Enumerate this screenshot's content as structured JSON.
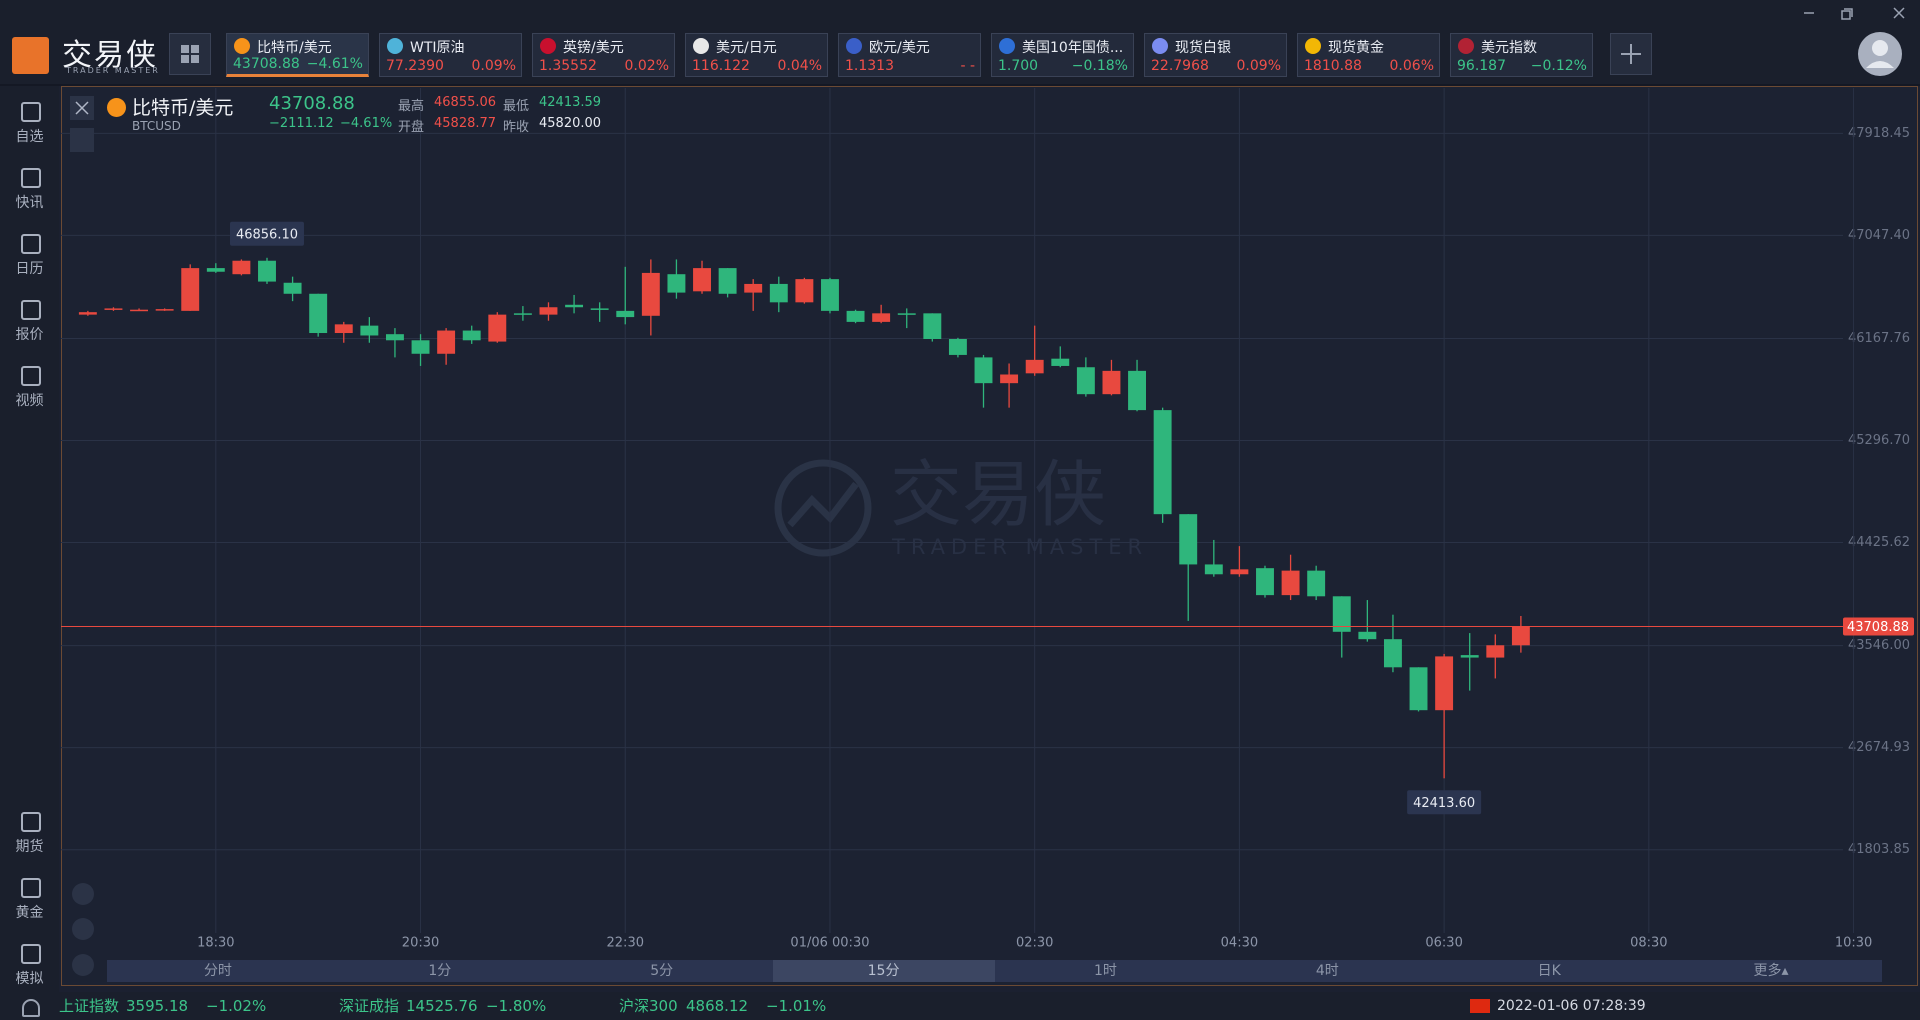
{
  "logo": {
    "title": "交易侠",
    "subtitle": "TRADER MASTER"
  },
  "tickers": [
    {
      "name": "比特币/美元",
      "price": "43708.88",
      "change": "−4.61%",
      "color": "#3cc48a",
      "icon_color": "#f7931a"
    },
    {
      "name": "WTI原油",
      "price": "77.2390",
      "change": "0.09%",
      "color": "#f0504a",
      "icon_color": "#4fb3d9"
    },
    {
      "name": "英镑/美元",
      "price": "1.35552",
      "change": "0.02%",
      "color": "#f0504a",
      "icon_color": "#c8102e"
    },
    {
      "name": "美元/日元",
      "price": "116.122",
      "change": "0.04%",
      "color": "#f0504a",
      "icon_color": "#e8e8e8"
    },
    {
      "name": "欧元/美元",
      "price": "1.1313",
      "change": "- -",
      "color": "#f0504a",
      "icon_color": "#3a5fc8"
    },
    {
      "name": "美国10年国债...",
      "price": "1.700",
      "change": "−0.18%",
      "color": "#3cc48a",
      "icon_color": "#2e6fd6"
    },
    {
      "name": "现货白银",
      "price": "22.7968",
      "change": "0.09%",
      "color": "#f0504a",
      "icon_color": "#7b8cf0"
    },
    {
      "name": "现货黄金",
      "price": "1810.88",
      "change": "0.06%",
      "color": "#f0504a",
      "icon_color": "#f2b705"
    },
    {
      "name": "美元指数",
      "price": "96.187",
      "change": "−0.12%",
      "color": "#3cc48a",
      "icon_color": "#b22234"
    }
  ],
  "sidebar": {
    "top": [
      "自选",
      "快讯",
      "日历",
      "报价",
      "视频"
    ],
    "bottom": [
      "期货",
      "黄金",
      "模拟"
    ]
  },
  "chart_header": {
    "name": "比特币/美元",
    "code": "BTCUSD",
    "price": "43708.88",
    "change": "−2111.12",
    "change_pct": "−4.61%",
    "stats": [
      {
        "label": "最高",
        "value": "46855.06",
        "color": "#f0504a"
      },
      {
        "label": "开盘",
        "value": "45828.77",
        "color": "#f0504a"
      },
      {
        "label": "最低",
        "value": "42413.59",
        "color": "#3cc48a"
      },
      {
        "label": "昨收",
        "value": "45820.00",
        "color": "#e8ebf2"
      }
    ]
  },
  "watermark": {
    "title": "交易侠",
    "subtitle": "TRADER MASTER"
  },
  "chart_data": {
    "type": "candlestick",
    "x": [
      0,
      1,
      2,
      3,
      4,
      5,
      6,
      7,
      8,
      9,
      10,
      11,
      12,
      13,
      14,
      15,
      16,
      17,
      18,
      19,
      20,
      21,
      22,
      23,
      24,
      25,
      26,
      27,
      28,
      29,
      30,
      31,
      32,
      33,
      34,
      35,
      36,
      37,
      38,
      39,
      40,
      41,
      42,
      43,
      44,
      45,
      46,
      47,
      48,
      49,
      50,
      51,
      52,
      53,
      54,
      55,
      56
    ],
    "open": [
      46371,
      46413,
      46408,
      46413,
      46403,
      46768,
      46716,
      46831,
      46643,
      46549,
      46214,
      46277,
      46204,
      46152,
      46037,
      46235,
      46141,
      46382,
      46371,
      46455,
      46424,
      46403,
      46361,
      46716,
      46570,
      46768,
      46559,
      46633,
      46476,
      46674,
      46403,
      46309,
      46382,
      46382,
      46163,
      46006,
      45786,
      45870,
      45995,
      45922,
      45692,
      45891,
      45556,
      44668,
      44239,
      44155,
      44207,
      43977,
      44186,
      43967,
      43664,
      43601,
      43361,
      42995,
      43465,
      43444,
      43549
    ],
    "high": [
      46403,
      46434,
      46424,
      46424,
      46800,
      46810,
      46842,
      46856.1,
      46695,
      46549,
      46309,
      46350,
      46256,
      46204,
      46256,
      46277,
      46392,
      46444,
      46476,
      46539,
      46476,
      46779,
      46842,
      46842,
      46831,
      46768,
      46674,
      46695,
      46685,
      46685,
      46413,
      46455,
      46424,
      46382,
      46173,
      46027,
      45954,
      46277,
      46100,
      46006,
      45985,
      45985,
      45577,
      44668,
      44448,
      44395,
      44228,
      44322,
      44228,
      43967,
      43935,
      43810,
      43361,
      43475,
      43653,
      43642,
      43799
    ],
    "low": [
      46361,
      46403,
      46403,
      46403,
      46403,
      46727,
      46706,
      46633,
      46486,
      46183,
      46131,
      46131,
      46006,
      45933,
      45943,
      46121,
      46131,
      46319,
      46319,
      46382,
      46309,
      46288,
      46193,
      46507,
      46549,
      46518,
      46403,
      46392,
      46465,
      46382,
      46298,
      46298,
      46256,
      46141,
      46006,
      45577,
      45577,
      45849,
      45922,
      45671,
      45682,
      45546,
      44594,
      43757,
      44134,
      44134,
      43956,
      43935,
      43935,
      43444,
      43580,
      43319,
      42984,
      42413.6,
      43162,
      43266,
      43486
    ],
    "close": [
      46392,
      46424,
      46413,
      46418,
      46768,
      46737,
      46831,
      46653,
      46549,
      46214,
      46288,
      46193,
      46152,
      46037,
      46235,
      46152,
      46371,
      46371,
      46434,
      46434,
      46413,
      46350,
      46727,
      46559,
      46768,
      46549,
      46633,
      46476,
      46674,
      46403,
      46309,
      46382,
      46371,
      46163,
      46027,
      45786,
      45860,
      45985,
      45933,
      45692,
      45891,
      45556,
      44668,
      44239,
      44155,
      44197,
      43977,
      44186,
      43967,
      43664,
      43601,
      43361,
      42995,
      43454,
      43444,
      43549,
      43708.88
    ],
    "up_color": "#e8493f",
    "down_color": "#2fb67c",
    "xlim": [
      -1.05,
      69.76
    ],
    "xticks": [
      {
        "value": 5,
        "label": "18:30"
      },
      {
        "value": 13,
        "label": "20:30"
      },
      {
        "value": 21,
        "label": "22:30"
      },
      {
        "value": 29,
        "label": "01/06 00:30"
      },
      {
        "value": 37,
        "label": "02:30"
      },
      {
        "value": 45,
        "label": "04:30"
      },
      {
        "value": 53,
        "label": "06:30"
      },
      {
        "value": 61,
        "label": "08:30"
      },
      {
        "value": 69,
        "label": "10:30"
      }
    ],
    "ylim": [
      41093.3,
      48305.2
    ],
    "yticks": [
      47918.45,
      {
        "value": 47047.4,
        "label": "47047.40"
      },
      46167.76,
      {
        "value": 45296.7,
        "label": "45296.70"
      },
      44425.62,
      {
        "value": 43546,
        "label": "43546.00"
      },
      42674.93,
      41803.85
    ],
    "grid": true,
    "high_label": "46856.10",
    "low_label": "42413.60",
    "last_price_line": true
  },
  "periods": {
    "items": [
      "分时",
      "1分",
      "5分",
      "15分",
      "1时",
      "4时",
      "日K",
      "更多▴"
    ],
    "active": 3
  },
  "status_bar": {
    "indices": [
      {
        "name": "上证指数",
        "value": "3595.18",
        "change": "−1.02%"
      },
      {
        "name": "深证成指",
        "value": "14525.76",
        "change": "−1.80%"
      },
      {
        "name": "沪深300",
        "value": "4868.12",
        "change": "−1.01%"
      }
    ],
    "datetime": "2022-01-06 07:28:39"
  }
}
